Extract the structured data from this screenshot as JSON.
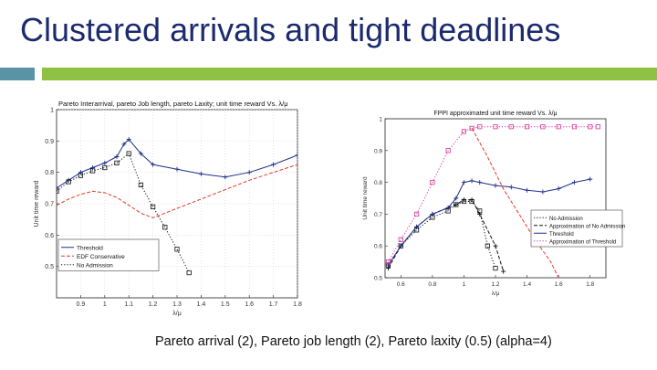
{
  "slide": {
    "title": "Clustered arrivals and tight deadlines",
    "caption": "Pareto arrival (2), Pareto job length (2), Pareto laxity (0.5) (alpha=4)",
    "colors": {
      "title": "#1c2a6e",
      "accent_square": "#5b93a6",
      "accent_bar": "#8fc242"
    }
  },
  "chart_data": [
    {
      "type": "line",
      "title": "Pareto Interarrival, pareto Job length, pareto Laxity; unit time reward Vs. λ/μ",
      "xlabel": "λ/μ",
      "ylabel": "Unit time reward",
      "xlim": [
        0.8,
        1.8
      ],
      "ylim": [
        0.4,
        1.0
      ],
      "xticks": [
        "0.9",
        "1",
        "1.1",
        "1.2",
        "1.3",
        "1.4",
        "1.5",
        "1.6",
        "1.7",
        "1.8"
      ],
      "yticks": [
        "0.5",
        "0.6",
        "0.7",
        "0.8",
        "0.9",
        "1"
      ],
      "legend_position": "bottom-left",
      "grid": true,
      "series": [
        {
          "name": "Threshold",
          "color": "#1f2f8a",
          "dash": "solid",
          "marker": "plus",
          "x": [
            0.8,
            0.85,
            0.9,
            0.95,
            1.0,
            1.05,
            1.08,
            1.1,
            1.15,
            1.2,
            1.3,
            1.4,
            1.5,
            1.6,
            1.7,
            1.8
          ],
          "y": [
            0.75,
            0.775,
            0.8,
            0.815,
            0.83,
            0.85,
            0.89,
            0.905,
            0.86,
            0.825,
            0.81,
            0.795,
            0.785,
            0.8,
            0.825,
            0.855
          ]
        },
        {
          "name": "EDF Conservative",
          "color": "#e03a2b",
          "dash": "dashed",
          "marker": "none",
          "x": [
            0.8,
            0.85,
            0.9,
            0.95,
            1.0,
            1.05,
            1.1,
            1.15,
            1.2,
            1.25,
            1.3,
            1.4,
            1.5,
            1.6,
            1.7,
            1.8
          ],
          "y": [
            0.695,
            0.715,
            0.73,
            0.74,
            0.735,
            0.72,
            0.695,
            0.67,
            0.655,
            0.67,
            0.685,
            0.715,
            0.745,
            0.775,
            0.8,
            0.825
          ]
        },
        {
          "name": "No Admission",
          "color": "#111111",
          "dash": "dotted",
          "marker": "square",
          "x": [
            0.8,
            0.85,
            0.9,
            0.95,
            1.0,
            1.05,
            1.1,
            1.15,
            1.2,
            1.25,
            1.3,
            1.35
          ],
          "y": [
            0.74,
            0.77,
            0.79,
            0.805,
            0.815,
            0.83,
            0.86,
            0.76,
            0.69,
            0.625,
            0.555,
            0.48
          ]
        }
      ]
    },
    {
      "type": "line",
      "title": "FPPI approximated unit time reward Vs. λ/μ",
      "xlabel": "λ/μ",
      "ylabel": "Unit time reward",
      "xlim": [
        0.5,
        1.9
      ],
      "ylim": [
        0.5,
        1.0
      ],
      "xticks": [
        "0.6",
        "0.8",
        "1",
        "1.2",
        "1.4",
        "1.6",
        "1.8"
      ],
      "yticks": [
        "0.5",
        "0.6",
        "0.7",
        "0.8",
        "0.9",
        "1"
      ],
      "legend_position": "right",
      "grid": false,
      "series": [
        {
          "name": "No Admission",
          "color": "#111111",
          "dash": "dotted",
          "marker": "square",
          "x": [
            0.52,
            0.6,
            0.7,
            0.8,
            0.9,
            0.95,
            1.0,
            1.05,
            1.1,
            1.15,
            1.2
          ],
          "y": [
            0.54,
            0.6,
            0.65,
            0.69,
            0.71,
            0.73,
            0.74,
            0.74,
            0.71,
            0.6,
            0.53
          ]
        },
        {
          "name": "Approximation of No Admission",
          "color": "#111111",
          "dash": "dashed",
          "marker": "plus",
          "x": [
            0.52,
            0.6,
            0.7,
            0.8,
            0.9,
            0.95,
            1.0,
            1.05,
            1.1,
            1.2,
            1.25
          ],
          "y": [
            0.53,
            0.6,
            0.66,
            0.7,
            0.72,
            0.73,
            0.745,
            0.745,
            0.7,
            0.6,
            0.52
          ]
        },
        {
          "name": "Threshold",
          "color": "#1f2f8a",
          "dash": "solid",
          "marker": "plus",
          "x": [
            0.52,
            0.6,
            0.7,
            0.8,
            0.9,
            0.95,
            1.0,
            1.05,
            1.1,
            1.2,
            1.3,
            1.4,
            1.5,
            1.6,
            1.7,
            1.8
          ],
          "y": [
            0.54,
            0.6,
            0.66,
            0.7,
            0.72,
            0.75,
            0.8,
            0.805,
            0.8,
            0.79,
            0.785,
            0.775,
            0.77,
            0.78,
            0.8,
            0.81
          ]
        },
        {
          "name": "Approximation of Threshold",
          "color": "#d6339a",
          "dash": "dotted",
          "marker": "square",
          "x": [
            0.52,
            0.6,
            0.7,
            0.8,
            0.9,
            1.0,
            1.05,
            1.1,
            1.2,
            1.3,
            1.4,
            1.5,
            1.6,
            1.7,
            1.8,
            1.85
          ],
          "y": [
            0.55,
            0.62,
            0.7,
            0.8,
            0.9,
            0.96,
            0.97,
            0.975,
            0.975,
            0.975,
            0.975,
            0.975,
            0.975,
            0.975,
            0.975,
            0.975
          ]
        },
        {
          "name": "",
          "color": "#e03a2b",
          "dash": "dashed",
          "marker": "none",
          "x": [
            1.05,
            1.15,
            1.25,
            1.35,
            1.45,
            1.55,
            1.6
          ],
          "y": [
            0.97,
            0.88,
            0.78,
            0.7,
            0.62,
            0.55,
            0.5
          ]
        }
      ]
    }
  ]
}
